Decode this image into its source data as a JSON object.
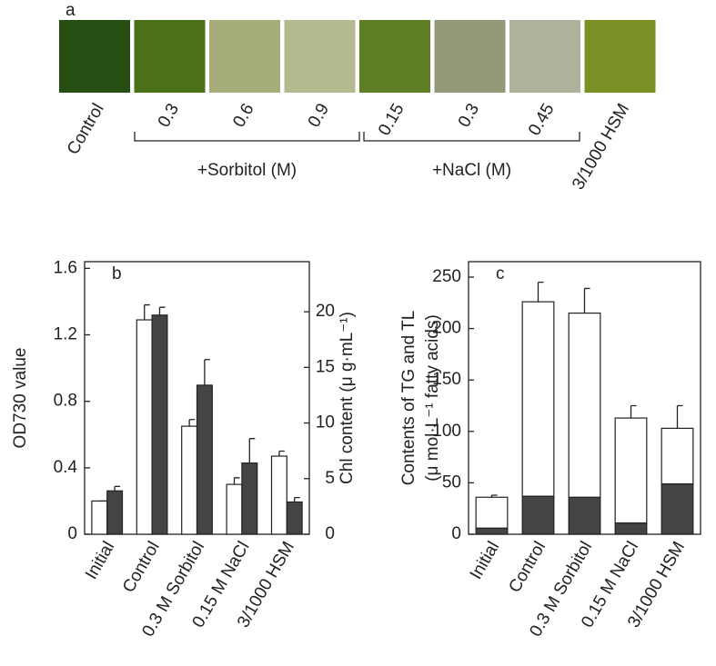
{
  "panel_a": {
    "label": "a",
    "swatches": [
      {
        "label": "Control",
        "color": "#264d12"
      },
      {
        "label": "0.3",
        "color": "#4a7018"
      },
      {
        "label": "0.6",
        "color": "#a6ad7a"
      },
      {
        "label": "0.9",
        "color": "#b5b98f"
      },
      {
        "label": "0.15",
        "color": "#5f7f24"
      },
      {
        "label": "0.3",
        "color": "#95997a"
      },
      {
        "label": "0.45",
        "color": "#aeb29a"
      },
      {
        "label": "3/1000 HSM",
        "color": "#7a9126"
      }
    ],
    "groups": [
      {
        "label": "+Sorbitol (M)"
      },
      {
        "label": "+NaCl (M)"
      }
    ]
  },
  "chart_data": [
    {
      "type": "bar",
      "label": "b",
      "categories": [
        "Initial",
        "Control",
        "0.3 M Sorbitol",
        "0.15 M NaCl",
        "3/1000 HSM"
      ],
      "ylabel": "OD730 value",
      "y2label": "Chl content (μ g·mL⁻¹)",
      "ylim": [
        0,
        1.64
      ],
      "yticks": [
        0,
        0.4,
        0.8,
        1.2,
        1.6
      ],
      "y2lim": [
        0,
        24.5
      ],
      "y2ticks": [
        0,
        5,
        10,
        15,
        20
      ],
      "series": [
        {
          "color": "#ffffff",
          "axis": "y",
          "values": [
            0.2,
            1.29,
            0.65,
            0.3,
            0.47
          ],
          "errors": [
            0,
            0.09,
            0.04,
            0.04,
            0.03
          ]
        },
        {
          "color": "#444444",
          "axis": "y2",
          "values": [
            3.9,
            19.7,
            13.4,
            6.4,
            2.9
          ],
          "errors": [
            0.4,
            0.7,
            2.3,
            2.2,
            0.4
          ]
        }
      ]
    },
    {
      "type": "stacked_bar",
      "label": "c",
      "categories": [
        "Initial",
        "Control",
        "0.3 M Sorbitol",
        "0.15 M NaCl",
        "3/1000 HSM"
      ],
      "ylabel": [
        "Contents of TG and TL",
        "(μ mol·L⁻¹ fatty acids)"
      ],
      "ylim": [
        0,
        265
      ],
      "yticks": [
        0,
        50,
        100,
        150,
        200,
        250
      ],
      "series": [
        {
          "color": "#444444",
          "values": [
            6,
            37,
            36,
            11,
            49
          ],
          "errors": [
            1,
            2,
            4,
            3,
            15
          ]
        },
        {
          "color": "#ffffff",
          "values": [
            30,
            189,
            179,
            102,
            54
          ],
          "errors": [
            2,
            19,
            24,
            12,
            22
          ]
        }
      ]
    }
  ]
}
